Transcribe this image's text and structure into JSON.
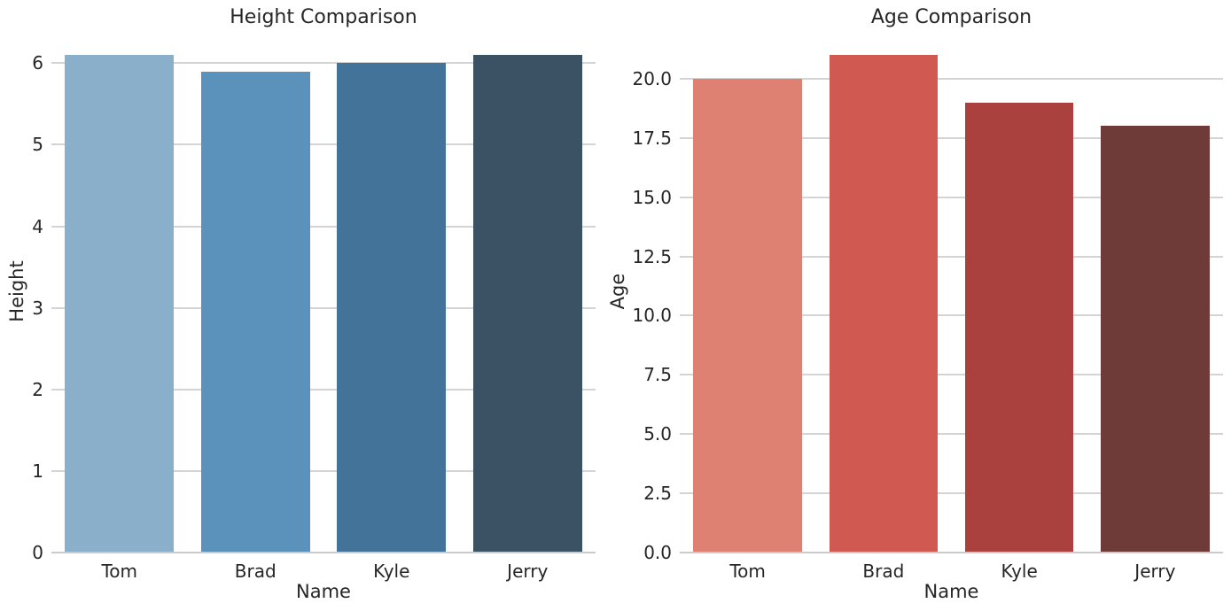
{
  "figure": {
    "background_color": "#ffffff",
    "text_color": "#262626",
    "grid_color": "#d4d4d4",
    "spine_color": "#cbcbcb",
    "grid": true
  },
  "chart_data": [
    {
      "type": "bar",
      "title": "Height Comparison",
      "xlabel": "Name",
      "ylabel": "Height",
      "categories": [
        "Tom",
        "Brad",
        "Kyle",
        "Jerry"
      ],
      "values": [
        6.1,
        5.9,
        6.0,
        6.1
      ],
      "bar_colors": [
        "#8aafcb",
        "#5b92bc",
        "#44739a",
        "#3b5164"
      ],
      "ylim": [
        0,
        6.405
      ],
      "yticks": [
        {
          "value": 0,
          "label": "0"
        },
        {
          "value": 1,
          "label": "1"
        },
        {
          "value": 2,
          "label": "2"
        },
        {
          "value": 3,
          "label": "3"
        },
        {
          "value": 4,
          "label": "4"
        },
        {
          "value": 5,
          "label": "5"
        },
        {
          "value": 6,
          "label": "6"
        }
      ],
      "grid": true,
      "legend": null
    },
    {
      "type": "bar",
      "title": "Age Comparison",
      "xlabel": "Name",
      "ylabel": "Age",
      "categories": [
        "Tom",
        "Brad",
        "Kyle",
        "Jerry"
      ],
      "values": [
        20,
        21,
        19,
        18
      ],
      "bar_colors": [
        "#de8172",
        "#d05a51",
        "#ab413e",
        "#6f3b39"
      ],
      "ylim": [
        0,
        22.05
      ],
      "yticks": [
        {
          "value": 0,
          "label": "0.0"
        },
        {
          "value": 2.5,
          "label": "2.5"
        },
        {
          "value": 5,
          "label": "5.0"
        },
        {
          "value": 7.5,
          "label": "7.5"
        },
        {
          "value": 10,
          "label": "10.0"
        },
        {
          "value": 12.5,
          "label": "12.5"
        },
        {
          "value": 15,
          "label": "15.0"
        },
        {
          "value": 17.5,
          "label": "17.5"
        },
        {
          "value": 20,
          "label": "20.0"
        }
      ],
      "grid": true,
      "legend": null
    }
  ]
}
